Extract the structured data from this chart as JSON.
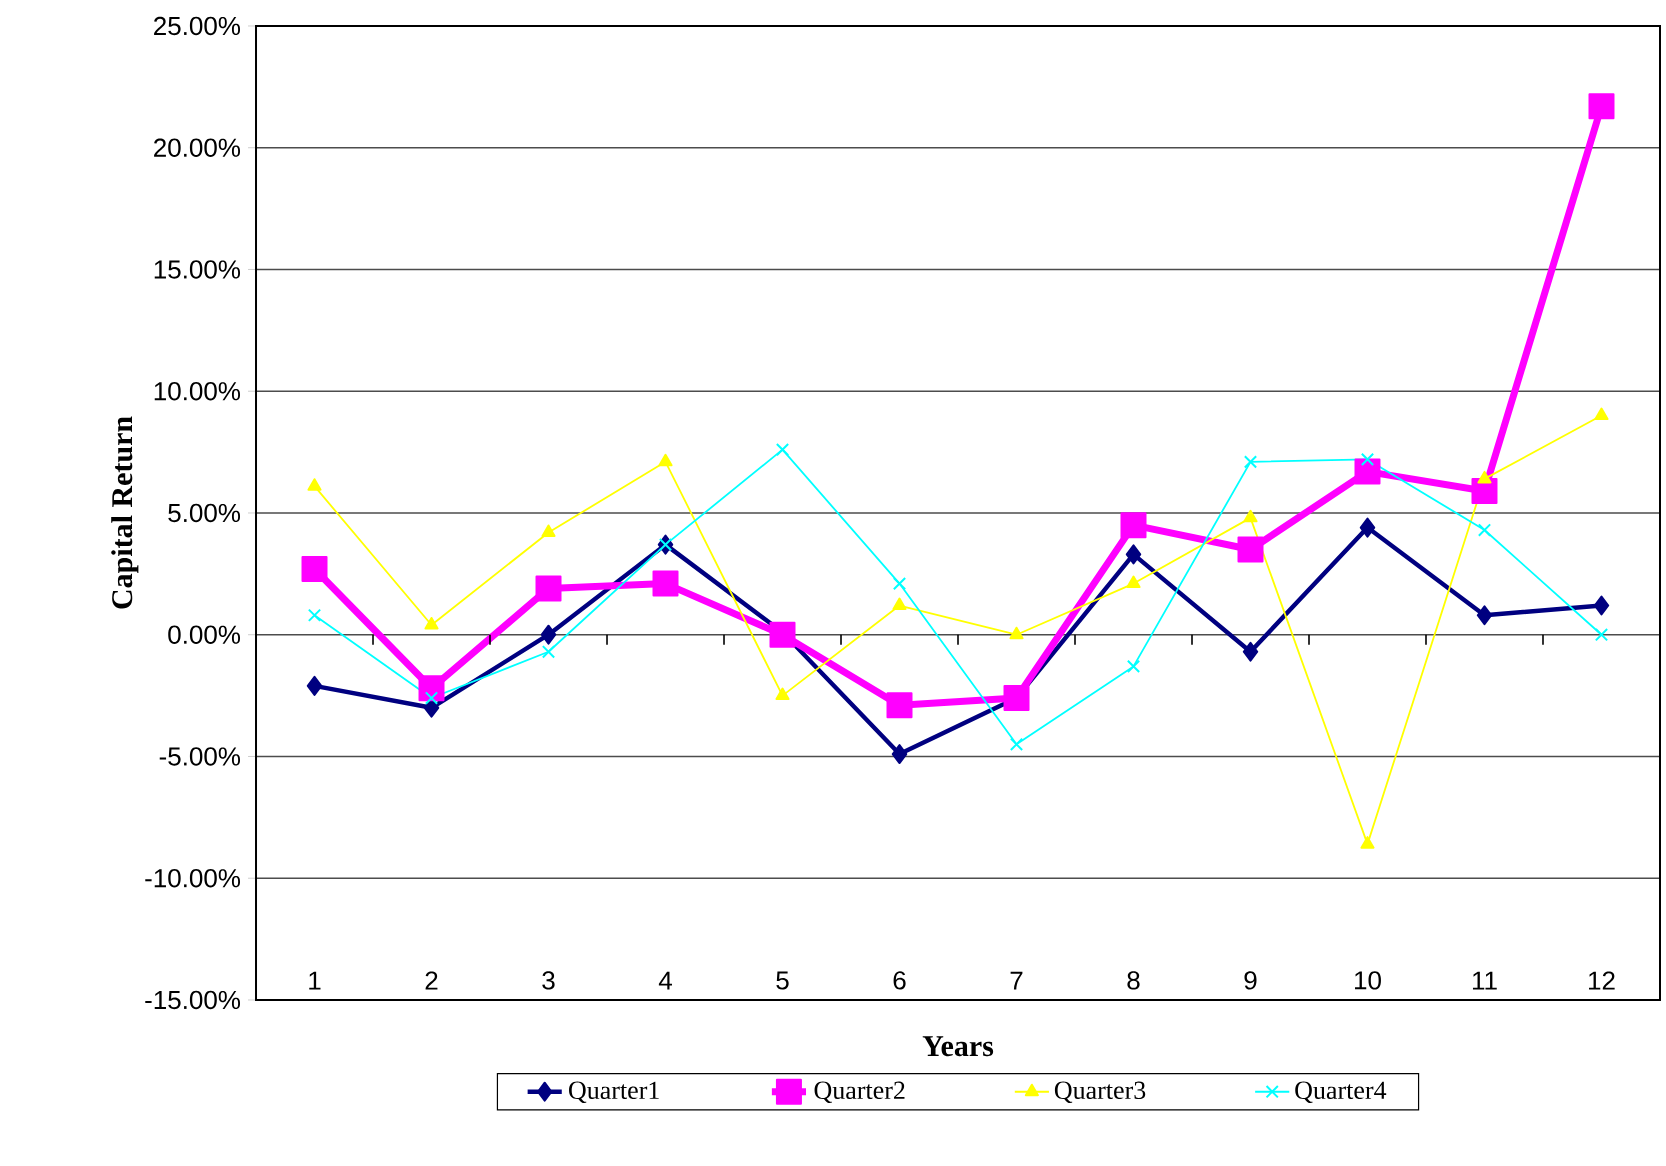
{
  "chart_data": {
    "type": "line",
    "xlabel": "Years",
    "ylabel": "Capital Return",
    "categories": [
      "1",
      "2",
      "3",
      "4",
      "5",
      "6",
      "7",
      "8",
      "9",
      "10",
      "11",
      "12"
    ],
    "series": [
      {
        "name": "Quarter1",
        "color": "#000080",
        "marker": "diamond",
        "values": [
          -2.1,
          -3.0,
          0.0,
          3.7,
          0.1,
          -4.9,
          -2.6,
          3.3,
          -0.7,
          4.4,
          0.8,
          1.2
        ]
      },
      {
        "name": "Quarter2",
        "color": "#ff00ff",
        "marker": "square",
        "values": [
          2.7,
          -2.2,
          1.9,
          2.1,
          0.0,
          -2.9,
          -2.6,
          4.5,
          3.5,
          6.7,
          5.9,
          21.7
        ]
      },
      {
        "name": "Quarter3",
        "color": "#ffff00",
        "marker": "triangle",
        "values": [
          6.1,
          0.4,
          4.2,
          7.1,
          -2.5,
          1.2,
          0.0,
          2.1,
          4.8,
          -8.6,
          6.4,
          9.0
        ]
      },
      {
        "name": "Quarter4",
        "color": "#00ffff",
        "marker": "cross",
        "values": [
          0.8,
          -2.6,
          -0.7,
          3.7,
          7.6,
          2.1,
          -4.5,
          -1.3,
          7.1,
          7.2,
          4.3,
          0.0
        ]
      }
    ],
    "ylim": [
      -15,
      25
    ],
    "yticks": [
      {
        "value": -15,
        "label": "-15.00%"
      },
      {
        "value": -10,
        "label": "-10.00%"
      },
      {
        "value": -5,
        "label": "-5.00%"
      },
      {
        "value": 0,
        "label": "0.00%"
      },
      {
        "value": 5,
        "label": "5.00%"
      },
      {
        "value": 10,
        "label": "10.00%"
      },
      {
        "value": 15,
        "label": "15.00%"
      },
      {
        "value": 20,
        "label": "20.00%"
      },
      {
        "value": 25,
        "label": "25.00%"
      }
    ],
    "grid": "y",
    "legend": "bottom",
    "line_style": "solid"
  }
}
